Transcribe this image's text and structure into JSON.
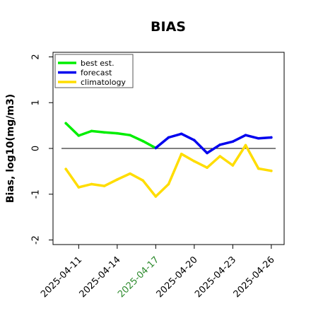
{
  "chart_data": {
    "type": "line",
    "title": "BIAS",
    "xlabel": "",
    "ylabel": "Bias, log10(mg/m3)",
    "x": [
      "2025-04-10",
      "2025-04-11",
      "2025-04-12",
      "2025-04-13",
      "2025-04-14",
      "2025-04-15",
      "2025-04-16",
      "2025-04-17",
      "2025-04-18",
      "2025-04-19",
      "2025-04-20",
      "2025-04-21",
      "2025-04-22",
      "2025-04-23",
      "2025-04-24",
      "2025-04-25",
      "2025-04-26"
    ],
    "xlim": [
      "2025-04-09",
      "2025-04-27"
    ],
    "ylim": [
      -2.1,
      2.1
    ],
    "yticks": [
      -2,
      -1,
      0,
      1,
      2
    ],
    "xticks": [
      {
        "label": "2025-04-11",
        "color": "#000000"
      },
      {
        "label": "2025-04-14",
        "color": "#000000"
      },
      {
        "label": "2025-04-17",
        "color": "#2e8b2e"
      },
      {
        "label": "2025-04-20",
        "color": "#000000"
      },
      {
        "label": "2025-04-23",
        "color": "#000000"
      },
      {
        "label": "2025-04-26",
        "color": "#000000"
      }
    ],
    "reference_line": 0,
    "legend_position": "top-left",
    "series": [
      {
        "name": "best est.",
        "color": "#00ee00",
        "x": [
          "2025-04-10",
          "2025-04-11",
          "2025-04-12",
          "2025-04-13",
          "2025-04-14",
          "2025-04-15",
          "2025-04-16",
          "2025-04-17"
        ],
        "values": [
          0.55,
          0.28,
          0.38,
          0.35,
          0.33,
          0.29,
          0.16,
          0.01
        ]
      },
      {
        "name": "forecast",
        "color": "#0000ee",
        "x": [
          "2025-04-17",
          "2025-04-18",
          "2025-04-19",
          "2025-04-20",
          "2025-04-21",
          "2025-04-22",
          "2025-04-23",
          "2025-04-24",
          "2025-04-25",
          "2025-04-26"
        ],
        "values": [
          0.01,
          0.24,
          0.32,
          0.18,
          -0.1,
          0.08,
          0.15,
          0.29,
          0.22,
          0.24
        ]
      },
      {
        "name": "climatology",
        "color": "#ffdd00",
        "x": [
          "2025-04-10",
          "2025-04-11",
          "2025-04-12",
          "2025-04-13",
          "2025-04-14",
          "2025-04-15",
          "2025-04-16",
          "2025-04-17",
          "2025-04-18",
          "2025-04-19",
          "2025-04-20",
          "2025-04-21",
          "2025-04-22",
          "2025-04-23",
          "2025-04-24",
          "2025-04-25",
          "2025-04-26"
        ],
        "values": [
          -0.45,
          -0.85,
          -0.78,
          -0.82,
          -0.68,
          -0.55,
          -0.7,
          -1.05,
          -0.78,
          -0.12,
          -0.28,
          -0.42,
          -0.17,
          -0.37,
          0.07,
          -0.44,
          -0.49
        ]
      }
    ]
  }
}
